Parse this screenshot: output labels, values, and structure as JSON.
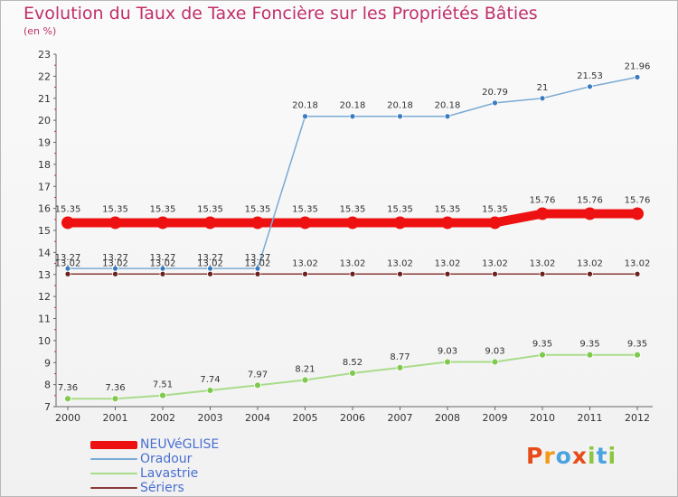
{
  "title": "Evolution du Taux de Taxe Foncière sur les Propriétés Bâties",
  "subtitle": "(en %)",
  "logo": {
    "letters": [
      "P",
      "r",
      "o",
      "x",
      "i",
      "t",
      "i"
    ],
    "colors": [
      "#e84b1a",
      "#f39a1b",
      "#4aa3df",
      "#e84b1a",
      "#8cc63f",
      "#4aa3df",
      "#8cc63f"
    ]
  },
  "chart_data": {
    "type": "line",
    "title": "Evolution du Taux de Taxe Foncière sur les Propriétés Bâties",
    "ylabel": "(en %)",
    "xlabel": "",
    "ylim": [
      7,
      23
    ],
    "yticks": [
      7,
      8,
      9,
      10,
      11,
      12,
      13,
      14,
      15,
      16,
      17,
      18,
      19,
      20,
      21,
      22,
      23
    ],
    "x": [
      "2000",
      "2001",
      "2002",
      "2003",
      "2004",
      "2005",
      "2006",
      "2007",
      "2008",
      "2009",
      "2010",
      "2011",
      "2012"
    ],
    "series": [
      {
        "name": "NEUVéGLISE",
        "color": "#ee1111",
        "marker": "#ee1111",
        "values": [
          15.35,
          15.35,
          15.35,
          15.35,
          15.35,
          15.35,
          15.35,
          15.35,
          15.35,
          15.35,
          15.76,
          15.76,
          15.76
        ]
      },
      {
        "name": "Oradour",
        "color": "#7aaad6",
        "marker": "#3a7cc0",
        "values": [
          13.27,
          13.27,
          13.27,
          13.27,
          13.27,
          20.18,
          20.18,
          20.18,
          20.18,
          20.79,
          21,
          21.53,
          21.96
        ]
      },
      {
        "name": "Lavastrie",
        "color": "#a9dc8a",
        "marker": "#7fca4e",
        "values": [
          7.36,
          7.36,
          7.51,
          7.74,
          7.97,
          8.21,
          8.52,
          8.77,
          9.03,
          9.03,
          9.35,
          9.35,
          9.35
        ]
      },
      {
        "name": "Sériers",
        "color": "#8b3a3a",
        "marker": "#6b2020",
        "values": [
          13.02,
          13.02,
          13.02,
          13.02,
          13.02,
          13.02,
          13.02,
          13.02,
          13.02,
          13.02,
          13.02,
          13.02,
          13.02
        ]
      }
    ],
    "value_labels": [
      [
        "15.35",
        "15.35",
        "15.35",
        "15.35",
        "15.35",
        "15.35",
        "15.35",
        "15.35",
        "15.35",
        "15.35",
        "15.76",
        "15.76",
        "15.76"
      ],
      [
        "13.27",
        "13.27",
        "13.27",
        "13.27",
        "13.27",
        "20.18",
        "20.18",
        "20.18",
        "20.18",
        "20.79",
        "21",
        "21.53",
        "21.96"
      ],
      [
        "7.36",
        "7.36",
        "7.51",
        "7.74",
        "7.97",
        "8.21",
        "8.52",
        "8.77",
        "9.03",
        "9.03",
        "9.35",
        "9.35",
        "9.35"
      ],
      [
        "13.02",
        "13.02",
        "13.02",
        "13.02",
        "13.02",
        "13.02",
        "13.02",
        "13.02",
        "13.02",
        "13.02",
        "13.02",
        "13.02",
        "13.02"
      ]
    ],
    "grid": false,
    "legend_position": "bottom-left"
  }
}
